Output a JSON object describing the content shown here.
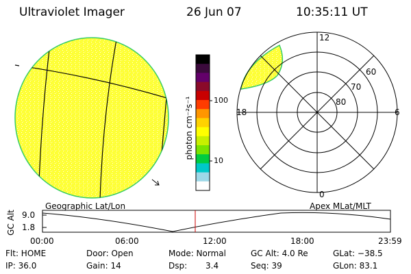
{
  "header": {
    "title": "Ultraviolet Imager",
    "date": "26 Jun 07",
    "time": "10:35:11 UT"
  },
  "colorbar": {
    "unit_label": "photon cm⁻²s⁻¹",
    "ticks": [
      "100",
      "10"
    ],
    "colors": [
      "#000000",
      "#3b0a3c",
      "#63006a",
      "#8a0a2a",
      "#c80000",
      "#ff3c00",
      "#ff9600",
      "#ffd200",
      "#ffff00",
      "#c8f000",
      "#7ae400",
      "#00cc40",
      "#00c8c8",
      "#9ed8e8",
      "#ffffff"
    ]
  },
  "geo_panel": {
    "fill_color": "#ffff33",
    "edge_color": "#33cc66"
  },
  "polar_panel": {
    "mlt_labels": {
      "top": "12",
      "right": "6",
      "bottom": "0",
      "left": "18"
    },
    "lat_labels": [
      "60",
      "70",
      "80"
    ]
  },
  "altitude_plot": {
    "y_axis_label": "GC Alt",
    "y_ticks": [
      "9.0",
      "1.8"
    ],
    "left_title": "Geographic Lat/Lon",
    "right_title": "Apex MLat/MLT",
    "x_ticks": [
      "00:00",
      "06:00",
      "12:00",
      "18:00",
      "23:59"
    ],
    "marker_color": "#cc0000"
  },
  "status": {
    "flt": "Flt: HOME",
    "door": "Door: Open",
    "mode": "Mode: Normal",
    "gc_alt": "GC Alt: 4.0 Re",
    "glat": "GLat: −38.5",
    "ip": "IP: 36.0",
    "gain": "Gain: 14",
    "dsp_label": "Dsp:",
    "dsp_value": "3.4",
    "seq": "Seq: 39",
    "glon": "GLon: 83.1"
  }
}
